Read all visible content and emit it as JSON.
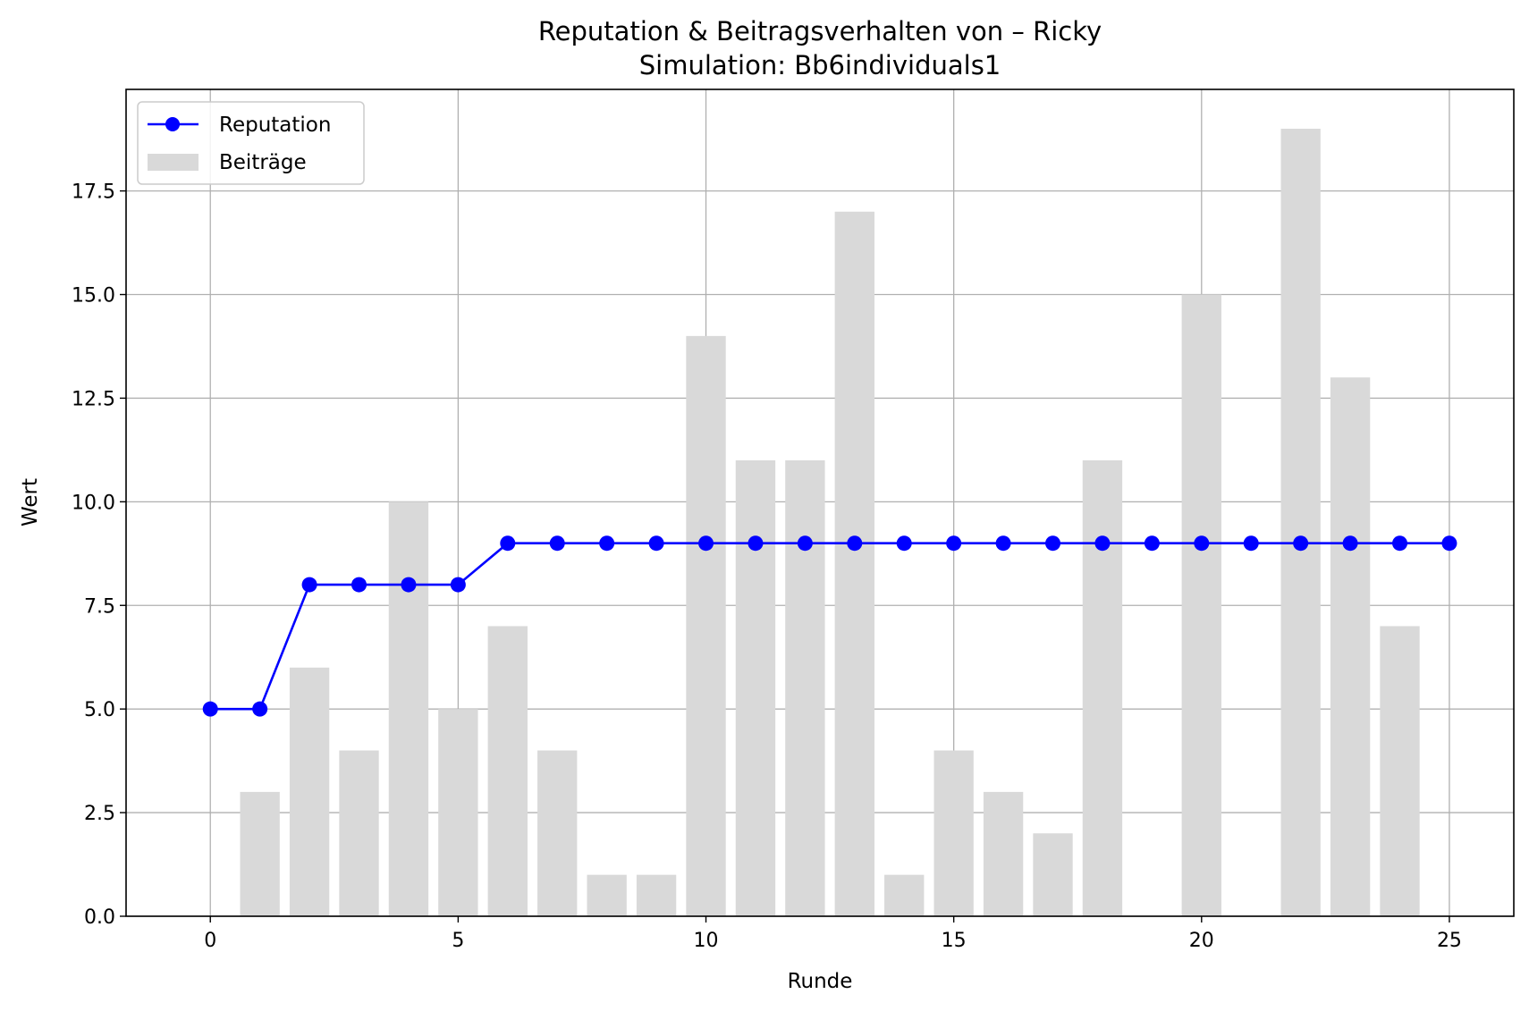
{
  "chart_data": {
    "type": "bar+line",
    "title": "Reputation & Beitragsverhalten von – Ricky",
    "subtitle": "Simulation: Bb6individuals1",
    "xlabel": "Runde",
    "ylabel": "Wert",
    "xlim": [
      -1.7,
      26.3
    ],
    "ylim": [
      0,
      19.95
    ],
    "xticks": [
      0,
      5,
      10,
      15,
      20,
      25
    ],
    "yticks": [
      0,
      2.5,
      5,
      7.5,
      10,
      12.5,
      15,
      17.5
    ],
    "ytick_labels": [
      "0.0",
      "2.5",
      "5.0",
      "7.5",
      "10.0",
      "12.5",
      "15.0",
      "17.5"
    ],
    "grid": true,
    "legend_position": "upper left",
    "series": [
      {
        "name": "Reputation",
        "kind": "line",
        "marker": "circle",
        "color": "#0000ff",
        "x": [
          0,
          1,
          2,
          3,
          4,
          5,
          6,
          7,
          8,
          9,
          10,
          11,
          12,
          13,
          14,
          15,
          16,
          17,
          18,
          19,
          20,
          21,
          22,
          23,
          24,
          25
        ],
        "values": [
          5,
          5,
          8,
          8,
          8,
          8,
          9,
          9,
          9,
          9,
          9,
          9,
          9,
          9,
          9,
          9,
          9,
          9,
          9,
          9,
          9,
          9,
          9,
          9,
          9,
          9
        ]
      },
      {
        "name": "Beiträge",
        "kind": "bar",
        "color": "#d9d9d9",
        "x": [
          0,
          1,
          2,
          3,
          4,
          5,
          6,
          7,
          8,
          9,
          10,
          11,
          12,
          13,
          14,
          15,
          16,
          17,
          18,
          19,
          20,
          21,
          22,
          23,
          24,
          25
        ],
        "values": [
          0,
          3,
          6,
          4,
          10,
          5,
          7,
          4,
          1,
          1,
          14,
          11,
          11,
          17,
          1,
          4,
          3,
          2,
          11,
          0,
          15,
          0,
          19,
          13,
          7,
          0
        ]
      }
    ]
  }
}
